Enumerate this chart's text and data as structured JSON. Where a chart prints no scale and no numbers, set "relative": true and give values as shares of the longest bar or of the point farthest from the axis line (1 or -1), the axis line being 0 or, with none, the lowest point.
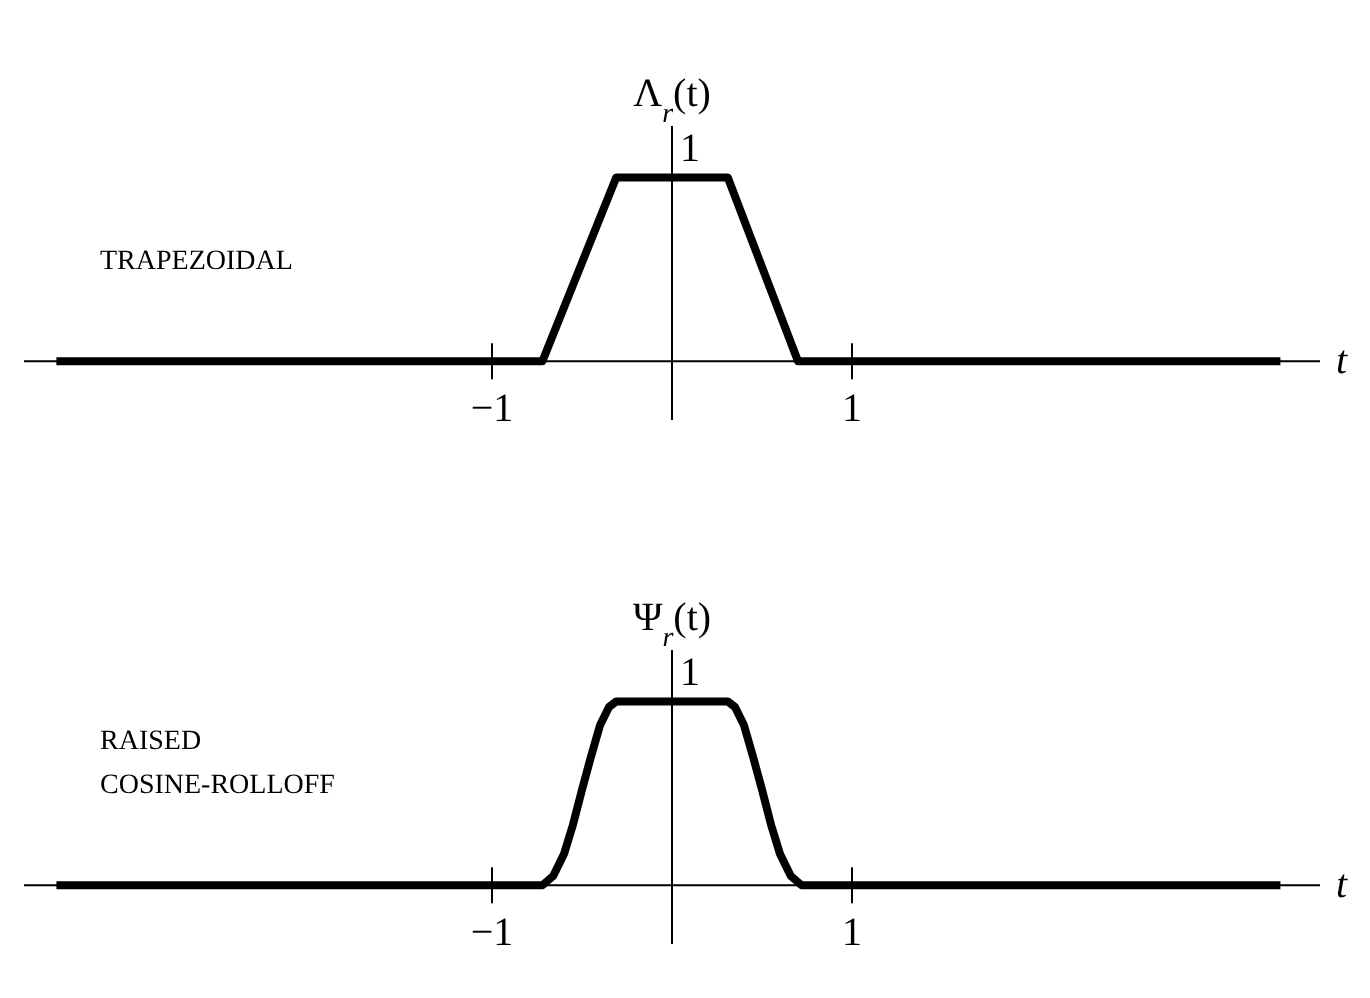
{
  "chart_data": [
    {
      "type": "line",
      "relative": true,
      "ylabel": "Λ$_{r}$(t)",
      "xlabel": "t",
      "annotations": [
        "TRAPEZOIDAL",
        {
          "text": "1",
          "y": 1
        }
      ],
      "marker": "none",
      "line_style": "solid",
      "x": [
        -3.42,
        -0.72,
        -0.31,
        0.31,
        0.7,
        3.38
      ],
      "series": [
        {
          "color": "#000000",
          "values": [
            0,
            0,
            1,
            1,
            0,
            0
          ]
        }
      ],
      "xlim": [
        -3.6,
        3.6
      ],
      "xticks": [
        {
          "value": -1,
          "label": "−1"
        },
        1
      ]
    },
    {
      "type": "line",
      "relative": true,
      "ylabel": "Ψ$_{r}$(t)",
      "xlabel": "t",
      "annotations": [
        "RAISED",
        "COSINE-ROLLOFF",
        {
          "text": "1",
          "y": 1
        }
      ],
      "marker": "none",
      "line_style": "solid",
      "x": [
        -3.42,
        -0.72,
        -0.66,
        -0.6,
        -0.55,
        -0.5,
        -0.45,
        -0.4,
        -0.35,
        -0.31,
        0.31,
        0.35,
        0.4,
        0.45,
        0.5,
        0.55,
        0.6,
        0.66,
        0.72,
        3.38
      ],
      "series": [
        {
          "color": "#000000",
          "values": [
            0,
            0,
            0.05,
            0.17,
            0.33,
            0.52,
            0.7,
            0.87,
            0.97,
            1,
            1,
            0.97,
            0.87,
            0.7,
            0.52,
            0.33,
            0.17,
            0.05,
            0,
            0
          ]
        }
      ],
      "xlim": [
        -3.6,
        3.6
      ],
      "xticks": [
        {
          "value": -1,
          "label": "−1"
        },
        1
      ]
    }
  ]
}
